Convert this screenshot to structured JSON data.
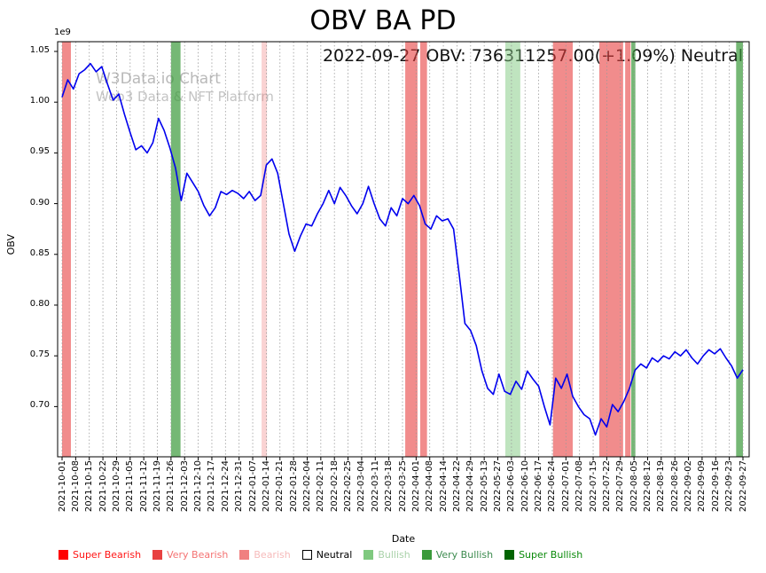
{
  "watermark": {
    "line1": "W3Data.io Chart",
    "line2": "Web3 Data & NFT Platform"
  },
  "chart_data": {
    "type": "line",
    "title": "OBV BA PD",
    "annotation": "2022-09-27 OBV: 736311257.00(+1.09%) Neutral",
    "xlabel": "Date",
    "ylabel": "OBV",
    "y_offset_text": "1e9",
    "ylim": [
      0.6505,
      1.0596
    ],
    "grid": "vertical-dashed",
    "legend_position": "bottom",
    "y_ticks": [
      "1.05",
      "1.00",
      "0.95",
      "0.90",
      "0.85",
      "0.80",
      "0.75",
      "0.70"
    ],
    "x_tick_labels": [
      "2021-10-01",
      "2021-10-08",
      "2021-10-15",
      "2021-10-22",
      "2021-10-29",
      "2021-11-05",
      "2021-11-12",
      "2021-11-19",
      "2021-11-26",
      "2021-12-03",
      "2021-12-10",
      "2021-12-17",
      "2021-12-24",
      "2021-12-31",
      "2022-01-07",
      "2022-01-14",
      "2022-01-21",
      "2022-01-28",
      "2022-02-04",
      "2022-02-11",
      "2022-02-18",
      "2022-02-25",
      "2022-03-04",
      "2022-03-11",
      "2022-03-18",
      "2022-03-25",
      "2022-04-01",
      "2022-04-08",
      "2022-04-14",
      "2022-04-22",
      "2022-04-29",
      "2022-05-13",
      "2022-05-27",
      "2022-06-03",
      "2022-06-10",
      "2022-06-17",
      "2022-06-24",
      "2022-07-01",
      "2022-07-08",
      "2022-07-15",
      "2022-07-22",
      "2022-07-29",
      "2022-08-05",
      "2022-08-12",
      "2022-08-19",
      "2022-08-26",
      "2022-09-02",
      "2022-09-09",
      "2022-09-16",
      "2022-09-23",
      "2022-09-27"
    ],
    "series": [
      {
        "name": "OBV",
        "color": "#0000ee",
        "units": "1e9",
        "values": [
          1.005,
          1.022,
          1.013,
          1.028,
          1.032,
          1.038,
          1.03,
          1.035,
          1.018,
          1.002,
          1.008,
          0.988,
          0.97,
          0.953,
          0.957,
          0.95,
          0.96,
          0.984,
          0.972,
          0.955,
          0.935,
          0.903,
          0.93,
          0.921,
          0.912,
          0.898,
          0.888,
          0.896,
          0.912,
          0.909,
          0.913,
          0.91,
          0.905,
          0.912,
          0.903,
          0.908,
          0.938,
          0.944,
          0.93,
          0.9,
          0.87,
          0.853,
          0.868,
          0.88,
          0.878,
          0.89,
          0.9,
          0.913,
          0.9,
          0.916,
          0.908,
          0.898,
          0.89,
          0.9,
          0.917,
          0.9,
          0.885,
          0.878,
          0.896,
          0.888,
          0.905,
          0.9,
          0.908,
          0.898,
          0.88,
          0.875,
          0.888,
          0.883,
          0.885,
          0.875,
          0.83,
          0.782,
          0.775,
          0.76,
          0.735,
          0.718,
          0.712,
          0.732,
          0.715,
          0.712,
          0.725,
          0.717,
          0.735,
          0.727,
          0.72,
          0.7,
          0.682,
          0.728,
          0.718,
          0.732,
          0.71,
          0.7,
          0.692,
          0.688,
          0.672,
          0.688,
          0.68,
          0.702,
          0.695,
          0.705,
          0.718,
          0.736,
          0.742,
          0.738,
          0.748,
          0.744,
          0.75,
          0.747,
          0.754,
          0.75,
          0.756,
          0.748,
          0.742,
          0.75,
          0.756,
          0.752,
          0.757,
          0.748,
          0.74,
          0.728,
          0.7363
        ]
      }
    ],
    "signal_bands": [
      {
        "start": 0.0,
        "end": 0.013,
        "level": "very_bearish"
      },
      {
        "start": 0.16,
        "end": 0.174,
        "level": "very_bullish"
      },
      {
        "start": 0.293,
        "end": 0.301,
        "level": "bearish"
      },
      {
        "start": 0.504,
        "end": 0.522,
        "level": "very_bearish"
      },
      {
        "start": 0.526,
        "end": 0.536,
        "level": "very_bearish"
      },
      {
        "start": 0.651,
        "end": 0.673,
        "level": "bullish"
      },
      {
        "start": 0.721,
        "end": 0.75,
        "level": "very_bearish"
      },
      {
        "start": 0.789,
        "end": 0.824,
        "level": "very_bearish"
      },
      {
        "start": 0.827,
        "end": 0.835,
        "level": "very_bearish"
      },
      {
        "start": 0.836,
        "end": 0.842,
        "level": "very_bullish"
      },
      {
        "start": 0.99,
        "end": 1.0,
        "level": "very_bullish"
      }
    ],
    "levels": {
      "super_bearish": {
        "label": "Super Bearish",
        "color": "#ff0000",
        "alpha": 0.6,
        "text": "#ff1414"
      },
      "very_bearish": {
        "label": "Very Bearish",
        "color": "#e84040",
        "alpha": 0.6,
        "text": "#f47272"
      },
      "bearish": {
        "label": "Bearish",
        "color": "#f08080",
        "alpha": 0.35,
        "text": "#f6baba"
      },
      "neutral": {
        "label": "Neutral",
        "color": "#ffffff",
        "alpha": 1.0,
        "text": "#000000"
      },
      "bullish": {
        "label": "Bullish",
        "color": "#7fc97f",
        "alpha": 0.5,
        "text": "#aad2aa"
      },
      "very_bullish": {
        "label": "Very Bullish",
        "color": "#3a9a3a",
        "alpha": 0.7,
        "text": "#3d8b4f"
      },
      "super_bullish": {
        "label": "Super Bullish",
        "color": "#016401",
        "alpha": 0.8,
        "text": "#0a8a0a"
      }
    },
    "legend": [
      "super_bearish",
      "very_bearish",
      "bearish",
      "neutral",
      "bullish",
      "very_bullish",
      "super_bullish"
    ]
  }
}
